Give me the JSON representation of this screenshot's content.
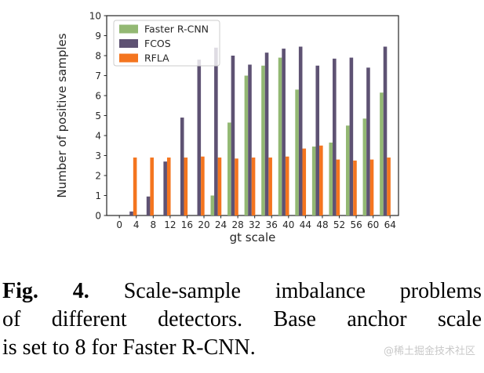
{
  "chart_data": {
    "type": "bar",
    "title": "",
    "xlabel": "gt scale",
    "ylabel": "Number of positive samples",
    "xlim": [
      -3,
      66
    ],
    "ylim": [
      0,
      10
    ],
    "x_ticks": [
      0,
      4,
      8,
      12,
      16,
      20,
      24,
      28,
      32,
      36,
      40,
      44,
      48,
      52,
      56,
      60,
      64
    ],
    "y_ticks": [
      0,
      1,
      2,
      3,
      4,
      5,
      6,
      7,
      8,
      9,
      10
    ],
    "categories": [
      2,
      6,
      10,
      14,
      18,
      22,
      26,
      30,
      34,
      38,
      42,
      46,
      50,
      54,
      58,
      62
    ],
    "bar_width": 0.85,
    "grid": false,
    "legend_position": "upper left",
    "frame_color": "#262626",
    "series": [
      {
        "name": "Faster R-CNN",
        "color": "#93b873",
        "values": [
          0,
          0,
          0,
          0,
          0,
          1.0,
          4.65,
          7.0,
          7.5,
          7.9,
          6.3,
          3.45,
          3.65,
          4.5,
          4.85,
          6.15
        ]
      },
      {
        "name": "FCOS",
        "color": "#5e5273",
        "values": [
          0.2,
          0.95,
          2.7,
          4.9,
          7.8,
          8.4,
          8.0,
          7.55,
          8.15,
          8.35,
          8.45,
          7.5,
          7.85,
          7.9,
          7.4,
          8.45
        ]
      },
      {
        "name": "RFLA",
        "color": "#f4751f",
        "values": [
          2.9,
          2.9,
          2.9,
          2.9,
          2.95,
          2.9,
          2.85,
          2.9,
          2.9,
          2.95,
          3.35,
          3.5,
          2.8,
          2.75,
          2.8,
          2.9
        ]
      }
    ]
  },
  "caption": {
    "label": "Fig. 4.",
    "line1_rest": "Scale-sample imbalance problems",
    "line2": "of different detectors. Base anchor scale",
    "line3": "is set to 8 for Faster R-CNN."
  },
  "watermark": {
    "text": "@稀土掘金技术社区",
    "color": "#c9c9c9"
  }
}
